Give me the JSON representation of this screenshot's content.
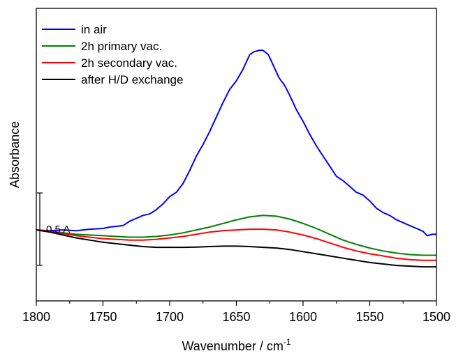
{
  "chart_data": {
    "type": "line",
    "title": "",
    "xlabel": "Wavenumber / cm",
    "xlabel_superscript": "-1",
    "ylabel": "Absorbance",
    "xlim": [
      1800,
      1500
    ],
    "ylim": [
      -0.12,
      1.9
    ],
    "x_reversed": true,
    "y_ticks_shown": false,
    "grid": false,
    "legend_position": "top-left",
    "xticks": [
      1800,
      1750,
      1700,
      1650,
      1600,
      1550,
      1500
    ],
    "xtick_labels": [
      "1800",
      "1750",
      "1700",
      "1650",
      "1600",
      "1550",
      "1500"
    ],
    "scale_bar": {
      "label": "0.5 A",
      "value": 0.5
    },
    "series": [
      {
        "name": "in air",
        "color": "#0000ff",
        "points": [
          [
            1800,
            0.37
          ],
          [
            1790,
            0.365
          ],
          [
            1780,
            0.37
          ],
          [
            1770,
            0.365
          ],
          [
            1760,
            0.375
          ],
          [
            1750,
            0.38
          ],
          [
            1745,
            0.39
          ],
          [
            1735,
            0.4
          ],
          [
            1730,
            0.43
          ],
          [
            1725,
            0.45
          ],
          [
            1720,
            0.47
          ],
          [
            1715,
            0.48
          ],
          [
            1710,
            0.51
          ],
          [
            1705,
            0.55
          ],
          [
            1700,
            0.6
          ],
          [
            1695,
            0.63
          ],
          [
            1690,
            0.69
          ],
          [
            1685,
            0.78
          ],
          [
            1680,
            0.88
          ],
          [
            1675,
            0.96
          ],
          [
            1670,
            1.05
          ],
          [
            1665,
            1.15
          ],
          [
            1660,
            1.25
          ],
          [
            1655,
            1.34
          ],
          [
            1650,
            1.4
          ],
          [
            1645,
            1.48
          ],
          [
            1640,
            1.58
          ],
          [
            1637,
            1.6
          ],
          [
            1633,
            1.61
          ],
          [
            1630,
            1.61
          ],
          [
            1626,
            1.58
          ],
          [
            1622,
            1.5
          ],
          [
            1618,
            1.42
          ],
          [
            1614,
            1.37
          ],
          [
            1610,
            1.3
          ],
          [
            1605,
            1.2
          ],
          [
            1600,
            1.12
          ],
          [
            1595,
            1.03
          ],
          [
            1590,
            0.95
          ],
          [
            1585,
            0.88
          ],
          [
            1580,
            0.81
          ],
          [
            1575,
            0.74
          ],
          [
            1570,
            0.71
          ],
          [
            1565,
            0.67
          ],
          [
            1560,
            0.63
          ],
          [
            1555,
            0.61
          ],
          [
            1550,
            0.57
          ],
          [
            1545,
            0.52
          ],
          [
            1540,
            0.49
          ],
          [
            1535,
            0.47
          ],
          [
            1530,
            0.44
          ],
          [
            1525,
            0.42
          ],
          [
            1520,
            0.4
          ],
          [
            1515,
            0.38
          ],
          [
            1510,
            0.36
          ],
          [
            1507,
            0.33
          ],
          [
            1503,
            0.34
          ],
          [
            1500,
            0.34
          ]
        ]
      },
      {
        "name": "2h primary vac.",
        "color": "#008000",
        "points": [
          [
            1800,
            0.37
          ],
          [
            1790,
            0.36
          ],
          [
            1780,
            0.35
          ],
          [
            1770,
            0.34
          ],
          [
            1760,
            0.335
          ],
          [
            1750,
            0.33
          ],
          [
            1740,
            0.325
          ],
          [
            1730,
            0.32
          ],
          [
            1720,
            0.32
          ],
          [
            1710,
            0.325
          ],
          [
            1700,
            0.335
          ],
          [
            1690,
            0.35
          ],
          [
            1680,
            0.37
          ],
          [
            1670,
            0.39
          ],
          [
            1660,
            0.415
          ],
          [
            1650,
            0.44
          ],
          [
            1640,
            0.46
          ],
          [
            1630,
            0.47
          ],
          [
            1620,
            0.465
          ],
          [
            1610,
            0.445
          ],
          [
            1600,
            0.415
          ],
          [
            1590,
            0.38
          ],
          [
            1580,
            0.34
          ],
          [
            1570,
            0.3
          ],
          [
            1560,
            0.27
          ],
          [
            1550,
            0.245
          ],
          [
            1540,
            0.225
          ],
          [
            1530,
            0.21
          ],
          [
            1520,
            0.2
          ],
          [
            1510,
            0.195
          ],
          [
            1500,
            0.195
          ]
        ]
      },
      {
        "name": "2h secondary vac.",
        "color": "#ff0000",
        "points": [
          [
            1800,
            0.37
          ],
          [
            1790,
            0.36
          ],
          [
            1780,
            0.345
          ],
          [
            1770,
            0.33
          ],
          [
            1760,
            0.32
          ],
          [
            1750,
            0.31
          ],
          [
            1740,
            0.305
          ],
          [
            1730,
            0.3
          ],
          [
            1720,
            0.3
          ],
          [
            1710,
            0.305
          ],
          [
            1700,
            0.315
          ],
          [
            1690,
            0.325
          ],
          [
            1680,
            0.34
          ],
          [
            1670,
            0.355
          ],
          [
            1660,
            0.365
          ],
          [
            1650,
            0.37
          ],
          [
            1640,
            0.375
          ],
          [
            1630,
            0.375
          ],
          [
            1620,
            0.37
          ],
          [
            1610,
            0.355
          ],
          [
            1600,
            0.335
          ],
          [
            1590,
            0.31
          ],
          [
            1580,
            0.28
          ],
          [
            1570,
            0.25
          ],
          [
            1560,
            0.225
          ],
          [
            1550,
            0.205
          ],
          [
            1540,
            0.19
          ],
          [
            1530,
            0.175
          ],
          [
            1520,
            0.165
          ],
          [
            1510,
            0.16
          ],
          [
            1500,
            0.16
          ]
        ]
      },
      {
        "name": "after H/D exchange",
        "color": "#000000",
        "points": [
          [
            1800,
            0.37
          ],
          [
            1790,
            0.355
          ],
          [
            1780,
            0.335
          ],
          [
            1770,
            0.315
          ],
          [
            1760,
            0.3
          ],
          [
            1750,
            0.285
          ],
          [
            1740,
            0.275
          ],
          [
            1730,
            0.265
          ],
          [
            1720,
            0.255
          ],
          [
            1710,
            0.25
          ],
          [
            1700,
            0.25
          ],
          [
            1690,
            0.25
          ],
          [
            1680,
            0.252
          ],
          [
            1670,
            0.255
          ],
          [
            1660,
            0.258
          ],
          [
            1650,
            0.258
          ],
          [
            1640,
            0.255
          ],
          [
            1630,
            0.25
          ],
          [
            1620,
            0.245
          ],
          [
            1610,
            0.235
          ],
          [
            1600,
            0.22
          ],
          [
            1590,
            0.205
          ],
          [
            1580,
            0.19
          ],
          [
            1570,
            0.175
          ],
          [
            1560,
            0.16
          ],
          [
            1550,
            0.145
          ],
          [
            1540,
            0.135
          ],
          [
            1530,
            0.125
          ],
          [
            1520,
            0.12
          ],
          [
            1510,
            0.115
          ],
          [
            1500,
            0.115
          ]
        ]
      }
    ]
  }
}
